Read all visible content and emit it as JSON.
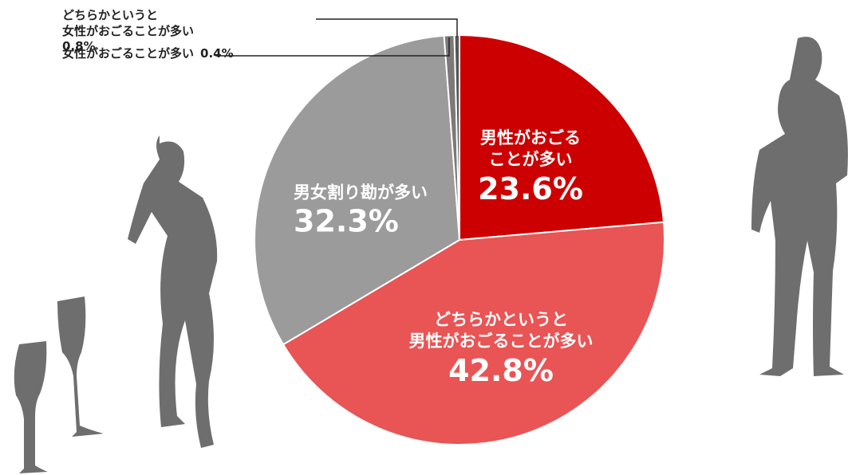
{
  "chart_data": {
    "type": "pie",
    "categories": [
      "男性がおごる\nことが多い",
      "どちらかというと\n男性がおごることが多い",
      "男女割り勘が多い",
      "どちらかというと\n女性がおごることが多い",
      "女性がおごることが多い"
    ],
    "values": [
      23.6,
      42.8,
      32.3,
      0.8,
      0.4
    ],
    "value_labels": [
      "23.6%",
      "42.8%",
      "32.3%",
      "0.8%",
      "0.4%"
    ],
    "colors": [
      "#cc0000",
      "#e95455",
      "#9b9b9b",
      "#7a7a7a",
      "#555555"
    ]
  }
}
